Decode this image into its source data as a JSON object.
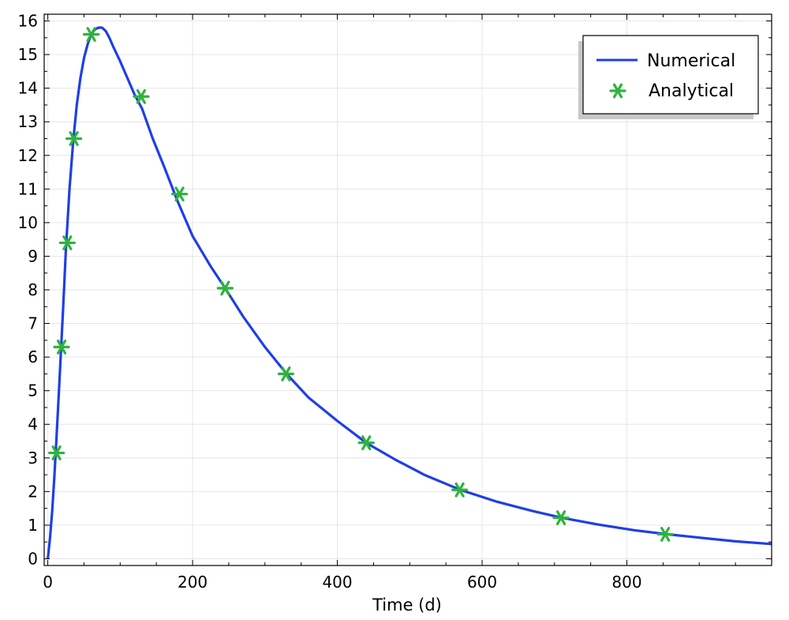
{
  "chart_data": {
    "type": "line",
    "title": "",
    "xlabel": "Time (d)",
    "ylabel": "",
    "xlim": [
      -5,
      1000
    ],
    "ylim": [
      -0.2,
      16.2
    ],
    "x_ticks": [
      0,
      200,
      400,
      600,
      800
    ],
    "x_tick_labels": [
      "0",
      "200",
      "400",
      "600",
      "800"
    ],
    "y_ticks": [
      0,
      1,
      2,
      3,
      4,
      5,
      6,
      7,
      8,
      9,
      10,
      11,
      12,
      13,
      14,
      15,
      16
    ],
    "y_tick_labels": [
      "0",
      "1",
      "2",
      "3",
      "4",
      "5",
      "6",
      "7",
      "8",
      "9",
      "10",
      "11",
      "12",
      "13",
      "14",
      "15",
      "16"
    ],
    "grid": true,
    "legend_position": "top-right",
    "series": [
      {
        "name": "Numerical",
        "kind": "line",
        "color": "#1f3fe6",
        "x": [
          0,
          3,
          6,
          9,
          12,
          15,
          18,
          21,
          25,
          30,
          35,
          40,
          45,
          50,
          55,
          60,
          65,
          70,
          75,
          80,
          85,
          90,
          100,
          110,
          120,
          130,
          145,
          160,
          180,
          200,
          225,
          245,
          270,
          300,
          330,
          360,
          400,
          440,
          480,
          520,
          570,
          620,
          670,
          710,
          760,
          810,
          855,
          900,
          950,
          1000
        ],
        "y": [
          0,
          0.6,
          1.4,
          2.4,
          3.6,
          4.8,
          6.1,
          7.4,
          9.2,
          11.0,
          12.4,
          13.5,
          14.3,
          14.9,
          15.3,
          15.6,
          15.75,
          15.8,
          15.8,
          15.7,
          15.5,
          15.25,
          14.8,
          14.3,
          13.8,
          13.4,
          12.5,
          11.7,
          10.6,
          9.6,
          8.7,
          8.05,
          7.2,
          6.3,
          5.5,
          4.8,
          4.1,
          3.45,
          2.95,
          2.5,
          2.05,
          1.7,
          1.42,
          1.22,
          1.02,
          0.85,
          0.73,
          0.63,
          0.52,
          0.44
        ]
      },
      {
        "name": "Analytical",
        "kind": "scatter",
        "color": "#2db33d",
        "x": [
          12,
          19,
          27,
          36,
          60,
          129,
          182,
          245,
          329,
          440,
          569,
          709,
          853
        ],
        "y": [
          3.15,
          6.3,
          9.4,
          12.5,
          15.6,
          13.75,
          10.85,
          8.05,
          5.5,
          3.45,
          2.05,
          1.22,
          0.73
        ]
      }
    ]
  }
}
